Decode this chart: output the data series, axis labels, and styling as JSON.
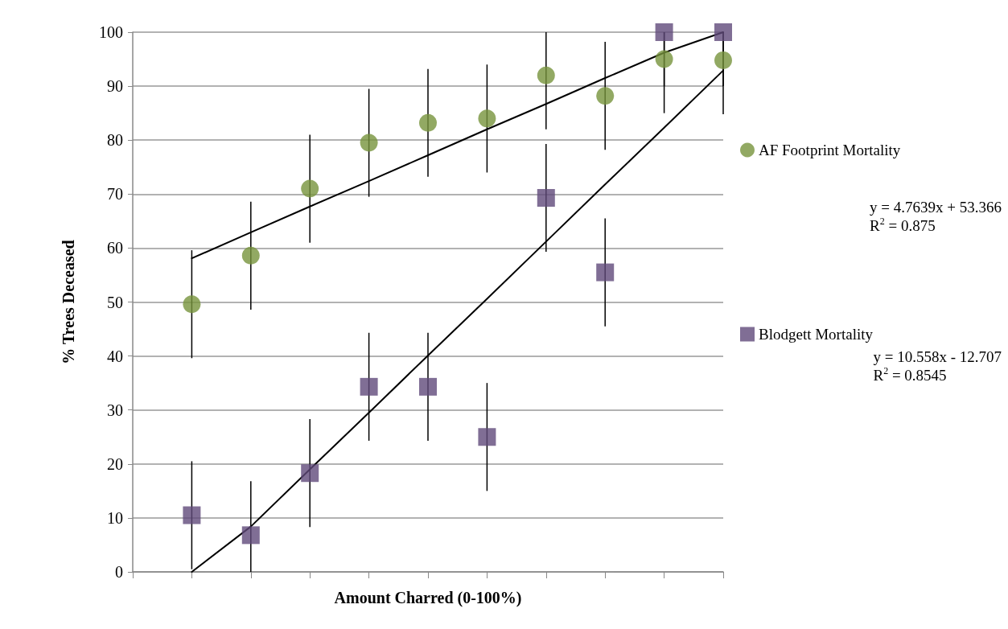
{
  "chart_data": {
    "type": "scatter",
    "xlabel": "Amount Charred (0-100%)",
    "ylabel": "% Trees Deceased",
    "categories": [
      null,
      null,
      null,
      null,
      null,
      null,
      null,
      null,
      null,
      null,
      null
    ],
    "ylim": [
      0,
      100
    ],
    "yticks": [
      0,
      10,
      20,
      30,
      40,
      50,
      60,
      70,
      80,
      90,
      100
    ],
    "grid": "y",
    "legend": "right",
    "series": [
      {
        "name": "AF Footprint Mortality",
        "color": "#77933c",
        "marker": "circle",
        "values": [
          null,
          49.6,
          58.6,
          71,
          79.5,
          83.2,
          84,
          92,
          88.2,
          95,
          94.8
        ],
        "errors": [
          null,
          10,
          10,
          10,
          10,
          10,
          10,
          [
            82,
            100
          ],
          10,
          [
            85,
            100
          ],
          [
            84.8,
            100
          ]
        ]
      },
      {
        "name": "Blodgett Mortality",
        "color": "#604a7b",
        "marker": "square",
        "values": [
          null,
          10.5,
          6.8,
          18.3,
          34.3,
          34.3,
          25,
          69.3,
          55.5,
          100,
          100
        ],
        "errors": [
          null,
          10,
          [
            0,
            16.8
          ],
          10,
          10,
          10,
          10,
          10,
          10,
          [
            90,
            100
          ],
          [
            90,
            100
          ]
        ]
      },
      {
        "type": "line",
        "color": "#000000",
        "marker": "none",
        "values": [
          null,
          58.1,
          62.9,
          67.7,
          72.4,
          77.2,
          82,
          86.7,
          91.5,
          96.2,
          100
        ]
      },
      {
        "type": "line",
        "color": "#000000",
        "marker": "none",
        "values": [
          null,
          0,
          8.4,
          19,
          29.5,
          40.1,
          50.6,
          61.2,
          71.8,
          82.3,
          92.9
        ]
      }
    ],
    "annotations": [
      "y = 4.7639x + 53.366\nR$^{2}$ = 0.875",
      "y = 10.558x - 12.707\nR$^{2}$ = 0.8545"
    ]
  }
}
